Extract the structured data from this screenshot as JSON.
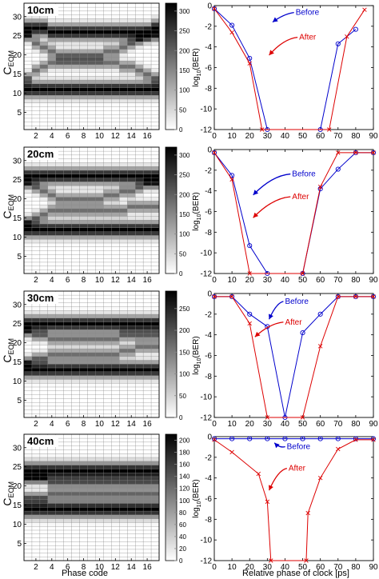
{
  "figure": {
    "heatmap_xlabel": "Phase code",
    "ber_xlabel": "Relative phase of clock [ps]"
  },
  "chart_data": [
    {
      "type": "heatmap",
      "panel": "10cm",
      "title": "10cm",
      "ylabel": "CEOM",
      "xlabel": "Phase code",
      "x_ticks": [
        2,
        4,
        6,
        8,
        10,
        12,
        14,
        16
      ],
      "y_ticks": [
        5,
        10,
        15,
        20,
        25,
        30
      ],
      "x_range": [
        1,
        17
      ],
      "y_range": [
        1,
        33
      ],
      "colorbar": {
        "min": 0,
        "max": 320,
        "ticks": [
          0,
          50,
          100,
          150,
          200,
          250,
          300
        ]
      },
      "bands": [
        {
          "name": "upper",
          "center": [
            27,
            27,
            27,
            26,
            26,
            26,
            26,
            26,
            26,
            26,
            26,
            26,
            26,
            26,
            26,
            26,
            27
          ],
          "half_width": 1.4,
          "peak": 320
        },
        {
          "name": "upper-crossing",
          "center": [
            25,
            23,
            22,
            21,
            20,
            20,
            20,
            20,
            20,
            20,
            21,
            21,
            22,
            23,
            24,
            25,
            25
          ],
          "half_width": 1.0,
          "peak": 180
        },
        {
          "name": "lower-crossing",
          "center": [
            14,
            16,
            17,
            18,
            18,
            18,
            18,
            18,
            18,
            18,
            18,
            18,
            17,
            17,
            16,
            15,
            14
          ],
          "half_width": 1.0,
          "peak": 180
        },
        {
          "name": "lower",
          "center": [
            11,
            11,
            11,
            11,
            11,
            11,
            11,
            11,
            11,
            11,
            11,
            11,
            11,
            11,
            11,
            11,
            11
          ],
          "half_width": 1.4,
          "peak": 320
        }
      ]
    },
    {
      "type": "heatmap",
      "panel": "20cm",
      "title": "20cm",
      "ylabel": "CEOM",
      "xlabel": "Phase code",
      "x_ticks": [
        2,
        4,
        6,
        8,
        10,
        12,
        14,
        16
      ],
      "y_ticks": [
        5,
        10,
        15,
        20,
        25,
        30
      ],
      "x_range": [
        1,
        17
      ],
      "y_range": [
        1,
        33
      ],
      "colorbar": {
        "min": 0,
        "max": 320,
        "ticks": [
          0,
          50,
          100,
          150,
          200,
          250,
          300
        ]
      },
      "bands": [
        {
          "name": "upper",
          "center": [
            26,
            26,
            26,
            26,
            26,
            26,
            26,
            26,
            26,
            26,
            26,
            26,
            26,
            26,
            26,
            26,
            26
          ],
          "half_width": 1.4,
          "peak": 320
        },
        {
          "name": "upper-crossing",
          "center": [
            24,
            23,
            22,
            21,
            20,
            20,
            20,
            20,
            20,
            20,
            21,
            21,
            22,
            22,
            23,
            24,
            24
          ],
          "half_width": 1.0,
          "peak": 180
        },
        {
          "name": "lower-crossing",
          "center": [
            14,
            15,
            16,
            17,
            17,
            17,
            17,
            17,
            17,
            17,
            17,
            17,
            17,
            18,
            18,
            18,
            18
          ],
          "half_width": 1.0,
          "peak": 180
        },
        {
          "name": "lower",
          "center": [
            12,
            12,
            12,
            12,
            12,
            12,
            12,
            12,
            12,
            12,
            12,
            12,
            12,
            12,
            12,
            12,
            12
          ],
          "half_width": 1.4,
          "peak": 320
        }
      ]
    },
    {
      "type": "heatmap",
      "panel": "30cm",
      "title": "30cm",
      "ylabel": "CEOM",
      "xlabel": "Phase code",
      "x_ticks": [
        2,
        4,
        6,
        8,
        10,
        12,
        14,
        16
      ],
      "y_ticks": [
        5,
        10,
        15,
        20,
        25,
        30
      ],
      "x_range": [
        1,
        17
      ],
      "y_range": [
        1,
        33
      ],
      "colorbar": {
        "min": 0,
        "max": 290,
        "ticks": [
          0,
          50,
          100,
          150,
          200,
          250
        ]
      },
      "bands": [
        {
          "name": "upper",
          "center": [
            25,
            25,
            25,
            25,
            25,
            25,
            25,
            25,
            25,
            25,
            25,
            25,
            25,
            25,
            25,
            25,
            25
          ],
          "half_width": 1.4,
          "peak": 290
        },
        {
          "name": "upper-crossing",
          "center": [
            23,
            22,
            22,
            21,
            21,
            21,
            21,
            21,
            21,
            21,
            21,
            21,
            22,
            22,
            22,
            22,
            22
          ],
          "half_width": 1.0,
          "peak": 160
        },
        {
          "name": "lower-crossing",
          "center": [
            15,
            16,
            16,
            17,
            17,
            17,
            17,
            17,
            17,
            17,
            17,
            17,
            18,
            18,
            19,
            19,
            19
          ],
          "half_width": 1.0,
          "peak": 160
        },
        {
          "name": "lower",
          "center": [
            13,
            13,
            13,
            13,
            13,
            13,
            13,
            13,
            13,
            13,
            13,
            13,
            13,
            13,
            13,
            13,
            13
          ],
          "half_width": 1.4,
          "peak": 290
        }
      ]
    },
    {
      "type": "heatmap",
      "panel": "40cm",
      "title": "40cm",
      "ylabel": "CEOM",
      "xlabel": "Phase code",
      "x_ticks": [
        2,
        4,
        6,
        8,
        10,
        12,
        14,
        16
      ],
      "y_ticks": [
        5,
        10,
        15,
        20,
        25,
        30
      ],
      "x_range": [
        1,
        17
      ],
      "y_range": [
        1,
        33
      ],
      "colorbar": {
        "min": 0,
        "max": 210,
        "ticks": [
          0,
          20,
          40,
          60,
          80,
          100,
          120,
          140,
          160,
          180,
          200
        ]
      },
      "bands": [
        {
          "name": "upper",
          "center": [
            24,
            24,
            24,
            24,
            24,
            24,
            24,
            24,
            24,
            24,
            24,
            24,
            24,
            24,
            24,
            24,
            24
          ],
          "half_width": 1.5,
          "peak": 210
        },
        {
          "name": "upper-crossing",
          "center": [
            22,
            22,
            22,
            21,
            21,
            21,
            21,
            21,
            21,
            21,
            21,
            21,
            21,
            21,
            21,
            21,
            21
          ],
          "half_width": 1.0,
          "peak": 120
        },
        {
          "name": "lower-crossing",
          "center": [
            17,
            17,
            17,
            18,
            18,
            18,
            18,
            18,
            18,
            18,
            18,
            18,
            18,
            18,
            18,
            18,
            18
          ],
          "half_width": 1.0,
          "peak": 120
        },
        {
          "name": "lower",
          "center": [
            14,
            14,
            14,
            14,
            14,
            14,
            14,
            14,
            14,
            14,
            14,
            14,
            14,
            14,
            14,
            14,
            14
          ],
          "half_width": 1.5,
          "peak": 210
        }
      ]
    },
    {
      "type": "line",
      "panel": "10cm",
      "xlabel": "",
      "ylabel": "log10(BER)",
      "xlim": [
        0,
        90
      ],
      "ylim": [
        -12,
        0
      ],
      "x_ticks": [
        0,
        10,
        20,
        30,
        40,
        50,
        60,
        70,
        80,
        90
      ],
      "y_ticks": [
        0,
        -2,
        -4,
        -6,
        -8,
        -10,
        -12
      ],
      "series": [
        {
          "name": "Before",
          "color": "#0000cc",
          "marker": "o",
          "points": [
            [
              0,
              -0.3
            ],
            [
              10,
              -1.9
            ],
            [
              20,
              -5.1
            ],
            [
              30,
              -12
            ],
            [
              60,
              -12
            ],
            [
              70,
              -3.7
            ],
            [
              80,
              -2.3
            ]
          ]
        },
        {
          "name": "After",
          "color": "#dd0000",
          "marker": "x",
          "points": [
            [
              0,
              -0.3
            ],
            [
              10,
              -2.6
            ],
            [
              20,
              -5.6
            ],
            [
              27,
              -12
            ],
            [
              65,
              -12
            ],
            [
              75,
              -3.0
            ],
            [
              85,
              -0.4
            ]
          ]
        }
      ],
      "annotations": [
        {
          "text": "Before",
          "color": "#0000cc",
          "x": 46,
          "y": -0.9,
          "arrow_to": [
            33,
            -1.6
          ]
        },
        {
          "text": "After",
          "color": "#dd0000",
          "x": 48,
          "y": -3.3,
          "arrow_to": [
            31,
            -4.8
          ]
        }
      ]
    },
    {
      "type": "line",
      "panel": "20cm",
      "xlabel": "",
      "ylabel": "log10(BER)",
      "xlim": [
        0,
        90
      ],
      "ylim": [
        -12,
        0
      ],
      "x_ticks": [
        0,
        10,
        20,
        30,
        40,
        50,
        60,
        70,
        80,
        90
      ],
      "y_ticks": [
        0,
        -2,
        -4,
        -6,
        -8,
        -10,
        -12
      ],
      "series": [
        {
          "name": "Before",
          "color": "#0000cc",
          "marker": "o",
          "points": [
            [
              0,
              -0.3
            ],
            [
              10,
              -2.5
            ],
            [
              20,
              -9.3
            ],
            [
              30,
              -12
            ],
            [
              50,
              -12
            ],
            [
              60,
              -3.8
            ],
            [
              70,
              -1.9
            ],
            [
              80,
              -0.3
            ],
            [
              90,
              -0.3
            ]
          ]
        },
        {
          "name": "After",
          "color": "#dd0000",
          "marker": "x",
          "points": [
            [
              0,
              -0.3
            ],
            [
              10,
              -2.9
            ],
            [
              20,
              -12
            ],
            [
              50,
              -12
            ],
            [
              60,
              -3.6
            ],
            [
              70,
              -0.3
            ],
            [
              80,
              -0.3
            ],
            [
              90,
              -0.3
            ]
          ]
        }
      ],
      "annotations": [
        {
          "text": "Before",
          "color": "#0000cc",
          "x": 44,
          "y": -2.6,
          "arrow_to": [
            22,
            -4.4
          ]
        },
        {
          "text": "After",
          "color": "#dd0000",
          "x": 44,
          "y": -4.8,
          "arrow_to": [
            22,
            -6.6
          ]
        }
      ]
    },
    {
      "type": "line",
      "panel": "30cm",
      "xlabel": "",
      "ylabel": "log10(BER)",
      "xlim": [
        0,
        90
      ],
      "ylim": [
        -12,
        0
      ],
      "x_ticks": [
        0,
        10,
        20,
        30,
        40,
        50,
        60,
        70,
        80,
        90
      ],
      "y_ticks": [
        0,
        -2,
        -4,
        -6,
        -8,
        -10,
        -12
      ],
      "series": [
        {
          "name": "Before",
          "color": "#0000cc",
          "marker": "o",
          "points": [
            [
              0,
              -0.3
            ],
            [
              10,
              -0.3
            ],
            [
              20,
              -2.0
            ],
            [
              30,
              -3.2
            ],
            [
              40,
              -12
            ],
            [
              50,
              -3.8
            ],
            [
              60,
              -2.0
            ],
            [
              70,
              -0.3
            ],
            [
              80,
              -0.3
            ],
            [
              90,
              -0.3
            ]
          ]
        },
        {
          "name": "After",
          "color": "#dd0000",
          "marker": "x",
          "points": [
            [
              0,
              -0.3
            ],
            [
              10,
              -0.3
            ],
            [
              20,
              -2.9
            ],
            [
              30,
              -12
            ],
            [
              50,
              -12
            ],
            [
              60,
              -5.1
            ],
            [
              70,
              -0.3
            ],
            [
              80,
              -0.3
            ],
            [
              90,
              -0.3
            ]
          ]
        }
      ],
      "annotations": [
        {
          "text": "Before",
          "color": "#0000cc",
          "x": 40,
          "y": -1.0,
          "arrow_to": [
            31,
            -2.5
          ]
        },
        {
          "text": "After",
          "color": "#dd0000",
          "x": 40,
          "y": -3.0,
          "arrow_to": [
            23,
            -4.2
          ]
        }
      ]
    },
    {
      "type": "line",
      "panel": "40cm",
      "xlabel": "Relative phase of clock [ps]",
      "ylabel": "log10(BER)",
      "xlim": [
        0,
        90
      ],
      "ylim": [
        -12,
        0
      ],
      "x_ticks": [
        0,
        10,
        20,
        30,
        40,
        50,
        60,
        70,
        80,
        90
      ],
      "y_ticks": [
        0,
        -2,
        -4,
        -6,
        -8,
        -10,
        -12
      ],
      "series": [
        {
          "name": "Before",
          "color": "#0000cc",
          "marker": "o",
          "points": [
            [
              0,
              -0.2
            ],
            [
              10,
              -0.2
            ],
            [
              20,
              -0.2
            ],
            [
              30,
              -0.2
            ],
            [
              40,
              -0.2
            ],
            [
              50,
              -0.2
            ],
            [
              60,
              -0.2
            ],
            [
              70,
              -0.2
            ],
            [
              80,
              -0.2
            ],
            [
              90,
              -0.2
            ]
          ]
        },
        {
          "name": "After",
          "color": "#dd0000",
          "marker": "x",
          "points": [
            [
              0,
              -0.3
            ],
            [
              10,
              -1.5
            ],
            [
              25,
              -3.6
            ],
            [
              30,
              -6.3
            ],
            [
              32,
              -12
            ],
            [
              52,
              -12
            ],
            [
              53,
              -7.4
            ],
            [
              60,
              -4.0
            ],
            [
              70,
              -1.2
            ],
            [
              80,
              -0.3
            ],
            [
              90,
              -0.3
            ]
          ]
        }
      ],
      "annotations": [
        {
          "text": "Before",
          "color": "#0000cc",
          "x": 41,
          "y": -1.2,
          "arrow_to": [
            34,
            -0.6
          ]
        },
        {
          "text": "After",
          "color": "#dd0000",
          "x": 42,
          "y": -3.3,
          "arrow_to": [
            31,
            -5.2
          ]
        }
      ]
    }
  ]
}
